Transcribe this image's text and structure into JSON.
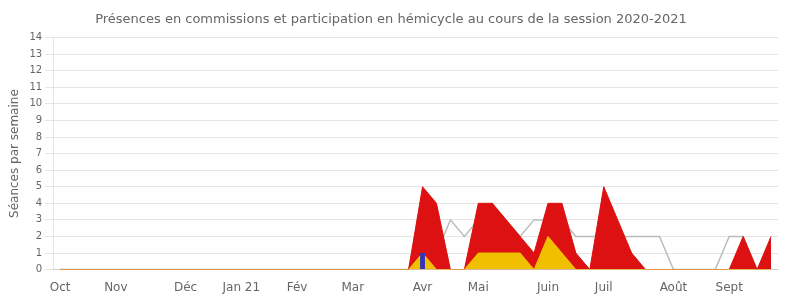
{
  "chart_data": {
    "type": "line",
    "title": "Présences en commissions et participation en hémicycle au cours de la session 2020-2021",
    "y_label": "Séances par semaine",
    "categories": [
      "Oct",
      null,
      null,
      null,
      "Nov",
      null,
      null,
      null,
      null,
      "Déc",
      null,
      null,
      null,
      "Jan 21",
      null,
      null,
      null,
      "Fév",
      null,
      null,
      null,
      "Mar",
      null,
      null,
      null,
      null,
      "Avr",
      null,
      null,
      null,
      "Mai",
      null,
      null,
      null,
      null,
      "Juin",
      null,
      null,
      null,
      "Juil",
      null,
      null,
      null,
      null,
      "Août",
      null,
      null,
      null,
      "Sept",
      null,
      null,
      null
    ],
    "series": [
      {
        "type": "line",
        "color": "#bbbbbb",
        "values": [
          0,
          0,
          0,
          0,
          0,
          0,
          0,
          0,
          0,
          0,
          0,
          0,
          0,
          0,
          0,
          0,
          0,
          0,
          0,
          0,
          0,
          0,
          0,
          0,
          0,
          0,
          4,
          1,
          3,
          2,
          3,
          4,
          3,
          2,
          3,
          3,
          3,
          2,
          2,
          2,
          2,
          2,
          2,
          2,
          0,
          0,
          0,
          0,
          2,
          2,
          0,
          0
        ]
      },
      {
        "type": "area",
        "color": "#dd1111",
        "values": [
          0,
          0,
          0,
          0,
          0,
          0,
          0,
          0,
          0,
          0,
          0,
          0,
          0,
          0,
          0,
          0,
          0,
          0,
          0,
          0,
          0,
          0,
          0,
          0,
          0,
          0,
          5,
          4,
          0,
          0,
          4,
          4,
          3,
          2,
          1,
          4,
          4,
          1,
          0,
          5,
          3,
          1,
          0,
          0,
          0,
          0,
          0,
          0,
          0,
          2,
          0,
          2
        ]
      },
      {
        "type": "area",
        "color": "#f0c000",
        "values": [
          0,
          0,
          0,
          0,
          0,
          0,
          0,
          0,
          0,
          0,
          0,
          0,
          0,
          0,
          0,
          0,
          0,
          0,
          0,
          0,
          0,
          0,
          0,
          0,
          0,
          0,
          1,
          0,
          0,
          0,
          1,
          1,
          1,
          1,
          0,
          2,
          1,
          0,
          0,
          0,
          0,
          0,
          0,
          0,
          0,
          0,
          0,
          0,
          0,
          0,
          0,
          0
        ]
      },
      {
        "type": "bar",
        "color": "#3333bb",
        "values": [
          null,
          null,
          null,
          null,
          null,
          null,
          null,
          null,
          null,
          null,
          null,
          null,
          null,
          null,
          null,
          null,
          null,
          null,
          null,
          null,
          null,
          null,
          null,
          null,
          null,
          null,
          1,
          null,
          null,
          null,
          null,
          null,
          null,
          null,
          null,
          null,
          null,
          null,
          null,
          null,
          null,
          null,
          null,
          null,
          null,
          null,
          null,
          null,
          null,
          null,
          null,
          null
        ]
      }
    ],
    "ylim": [
      0,
      14
    ],
    "yticks": [
      0,
      1,
      2,
      3,
      4,
      5,
      6,
      7,
      8,
      9,
      10,
      11,
      12,
      13,
      14
    ],
    "grid": true
  }
}
